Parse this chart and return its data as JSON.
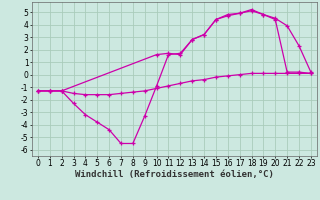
{
  "xlabel": "Windchill (Refroidissement éolien,°C)",
  "bg_color": "#cce8e0",
  "grid_color": "#aaccbb",
  "line_color": "#cc00aa",
  "xlim": [
    -0.5,
    23.5
  ],
  "ylim": [
    -6.5,
    5.8
  ],
  "xticks": [
    0,
    1,
    2,
    3,
    4,
    5,
    6,
    7,
    8,
    9,
    10,
    11,
    12,
    13,
    14,
    15,
    16,
    17,
    18,
    19,
    20,
    21,
    22,
    23
  ],
  "yticks": [
    -6,
    -5,
    -4,
    -3,
    -2,
    -1,
    0,
    1,
    2,
    3,
    4,
    5
  ],
  "curve1_x": [
    0,
    1,
    2,
    3,
    4,
    5,
    6,
    7,
    8,
    9,
    10,
    11,
    12,
    13,
    14,
    15,
    16,
    17,
    18,
    19,
    20,
    21,
    22,
    23
  ],
  "curve1_y": [
    -1.3,
    -1.3,
    -1.3,
    -2.3,
    -3.2,
    -3.8,
    -4.4,
    -5.5,
    -5.5,
    -3.3,
    -0.9,
    1.6,
    1.7,
    2.8,
    3.2,
    4.4,
    4.8,
    4.9,
    5.2,
    4.8,
    4.5,
    3.9,
    2.3,
    0.2
  ],
  "curve2_x": [
    0,
    1,
    2,
    10,
    11,
    12,
    13,
    14,
    15,
    16,
    17,
    18,
    19,
    20,
    21,
    22,
    23
  ],
  "curve2_y": [
    -1.3,
    -1.3,
    -1.3,
    1.6,
    1.7,
    1.6,
    2.8,
    3.2,
    4.4,
    4.7,
    4.9,
    5.1,
    4.8,
    4.4,
    0.2,
    0.2,
    0.1
  ],
  "curve3_x": [
    0,
    1,
    2,
    3,
    4,
    5,
    6,
    7,
    8,
    9,
    10,
    11,
    12,
    13,
    14,
    15,
    16,
    17,
    18,
    19,
    20,
    21,
    22,
    23
  ],
  "curve3_y": [
    -1.3,
    -1.3,
    -1.3,
    -1.5,
    -1.6,
    -1.6,
    -1.6,
    -1.5,
    -1.4,
    -1.3,
    -1.1,
    -0.9,
    -0.7,
    -0.5,
    -0.4,
    -0.2,
    -0.1,
    0.0,
    0.1,
    0.1,
    0.1,
    0.1,
    0.1,
    0.1
  ],
  "xlabel_fontsize": 6.5,
  "tick_fontsize": 5.5
}
